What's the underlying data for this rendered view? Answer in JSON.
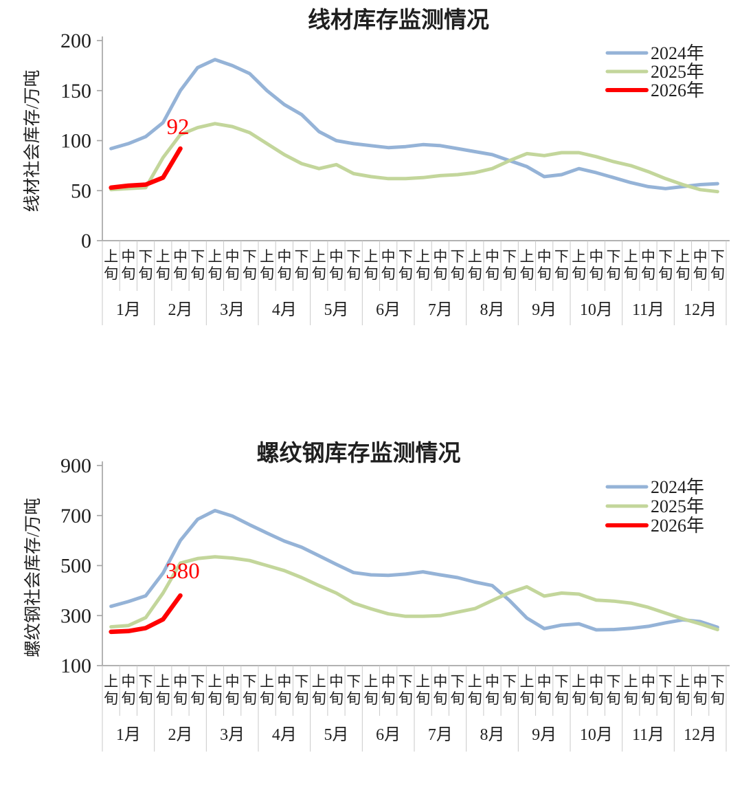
{
  "page": {
    "background": "#ffffff"
  },
  "colors": {
    "series_2024": "#95B3D7",
    "series_2025": "#C3D69B",
    "series_2026": "#FF0000",
    "axis_line": "#A6A6A6",
    "category_separator": "#C9C9C9",
    "text": "#1F1F1F"
  },
  "chart_data": [
    {
      "type": "line",
      "title": "线材库存监测情况",
      "ylabel": "线材社会库存/万吨",
      "ylim": [
        0,
        200
      ],
      "yticks": [
        0,
        50,
        100,
        150,
        200
      ],
      "grid": false,
      "legend_position": "top-right",
      "x_periods": [
        "上旬",
        "中旬",
        "下旬"
      ],
      "x_months": [
        "1月",
        "2月",
        "3月",
        "4月",
        "5月",
        "6月",
        "7月",
        "8月",
        "9月",
        "10月",
        "11月",
        "12月"
      ],
      "series": [
        {
          "name": "2024年",
          "color": "#95B3D7",
          "values": [
            92,
            97,
            104,
            118,
            150,
            173,
            181,
            175,
            167,
            150,
            136,
            126,
            109,
            100,
            97,
            95,
            93,
            94,
            96,
            95,
            92,
            89,
            86,
            80,
            74,
            64,
            66,
            72,
            68,
            63,
            58,
            54,
            52,
            54,
            56,
            57
          ]
        },
        {
          "name": "2025年",
          "color": "#C3D69B",
          "values": [
            51,
            52,
            53,
            83,
            106,
            113,
            117,
            114,
            108,
            97,
            86,
            77,
            72,
            76,
            67,
            64,
            62,
            62,
            63,
            65,
            66,
            68,
            72,
            80,
            87,
            85,
            88,
            88,
            84,
            79,
            75,
            69,
            62,
            56,
            51,
            49
          ]
        },
        {
          "name": "2026年",
          "color": "#FF0000",
          "values": [
            53,
            55,
            56,
            63,
            92
          ]
        }
      ],
      "annotation": {
        "text": "92",
        "series": "2026年",
        "month": "2月",
        "period": "中旬",
        "point_index": 4,
        "value": 92
      }
    },
    {
      "type": "line",
      "title": "螺纹钢库存监测情况",
      "ylabel": "螺纹钢社会库存/万吨",
      "ylim": [
        100,
        900
      ],
      "yticks": [
        100,
        300,
        500,
        700,
        900
      ],
      "grid": false,
      "legend_position": "top-right",
      "x_periods": [
        "上旬",
        "中旬",
        "下旬"
      ],
      "x_months": [
        "1月",
        "2月",
        "3月",
        "4月",
        "5月",
        "6月",
        "7月",
        "8月",
        "9月",
        "10月",
        "11月",
        "12月"
      ],
      "series": [
        {
          "name": "2024年",
          "color": "#95B3D7",
          "values": [
            337,
            356,
            379,
            470,
            600,
            685,
            720,
            698,
            663,
            630,
            598,
            573,
            539,
            505,
            472,
            463,
            461,
            466,
            475,
            463,
            452,
            434,
            420,
            360,
            290,
            248,
            262,
            267,
            243,
            244,
            249,
            257,
            271,
            283,
            276,
            253
          ]
        },
        {
          "name": "2025年",
          "color": "#C3D69B",
          "values": [
            255,
            260,
            292,
            390,
            510,
            528,
            535,
            530,
            520,
            500,
            480,
            452,
            420,
            390,
            350,
            327,
            307,
            297,
            297,
            300,
            314,
            328,
            360,
            392,
            415,
            378,
            390,
            386,
            362,
            358,
            350,
            333,
            310,
            287,
            267,
            244
          ]
        },
        {
          "name": "2026年",
          "color": "#FF0000",
          "values": [
            235,
            238,
            250,
            285,
            380
          ]
        }
      ],
      "annotation": {
        "text": "380",
        "series": "2026年",
        "month": "2月",
        "period": "中旬",
        "point_index": 4,
        "value": 380
      }
    }
  ]
}
